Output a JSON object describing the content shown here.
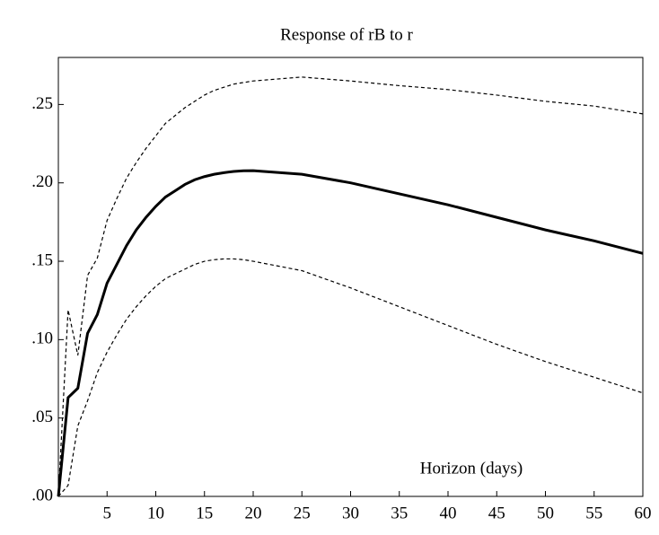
{
  "chart_data": {
    "type": "line",
    "title": "Response of rB to r",
    "annotation": "Horizon (days)",
    "x": [
      0,
      1,
      2,
      3,
      4,
      5,
      6,
      7,
      8,
      9,
      10,
      11,
      12,
      13,
      14,
      15,
      16,
      17,
      18,
      19,
      20,
      25,
      30,
      35,
      40,
      45,
      50,
      55,
      60
    ],
    "series": [
      {
        "color": "#000000",
        "style": "solid",
        "values": [
          0,
          0.063,
          0.069,
          0.104,
          0.116,
          0.136,
          0.148,
          0.16,
          0.17,
          0.178,
          0.185,
          0.191,
          0.195,
          0.199,
          0.202,
          0.204,
          0.2055,
          0.2065,
          0.2073,
          0.2077,
          0.2078,
          0.2055,
          0.2,
          0.193,
          0.186,
          0.178,
          0.17,
          0.163,
          0.155
        ]
      },
      {
        "color": "#000000",
        "style": "dashed",
        "values": [
          0,
          0.119,
          0.09,
          0.141,
          0.152,
          0.176,
          0.19,
          0.203,
          0.213,
          0.222,
          0.23,
          0.238,
          0.243,
          0.248,
          0.252,
          0.256,
          0.259,
          0.261,
          0.263,
          0.264,
          0.265,
          0.2675,
          0.265,
          0.262,
          0.2595,
          0.256,
          0.252,
          0.249,
          0.244
        ]
      },
      {
        "color": "#000000",
        "style": "dashed",
        "values": [
          0,
          0.007,
          0.045,
          0.061,
          0.079,
          0.092,
          0.103,
          0.113,
          0.121,
          0.128,
          0.134,
          0.139,
          0.142,
          0.145,
          0.148,
          0.15,
          0.151,
          0.1515,
          0.1515,
          0.151,
          0.15,
          0.144,
          0.133,
          0.121,
          0.109,
          0.097,
          0.086,
          0.076,
          0.066
        ]
      }
    ],
    "xlim": [
      0,
      60
    ],
    "xticks": [
      5,
      10,
      15,
      20,
      25,
      30,
      35,
      40,
      45,
      50,
      55,
      60
    ],
    "ylim": [
      0,
      0.28
    ],
    "yticks": [
      {
        "value": 0,
        "label": ".00"
      },
      {
        "value": 0.05,
        "label": ".05"
      },
      {
        "value": 0.1,
        "label": ".10"
      },
      {
        "value": 0.15,
        "label": ".15"
      },
      {
        "value": 0.2,
        "label": ".20"
      },
      {
        "value": 0.25,
        "label": ".25"
      }
    ],
    "grid": false
  }
}
